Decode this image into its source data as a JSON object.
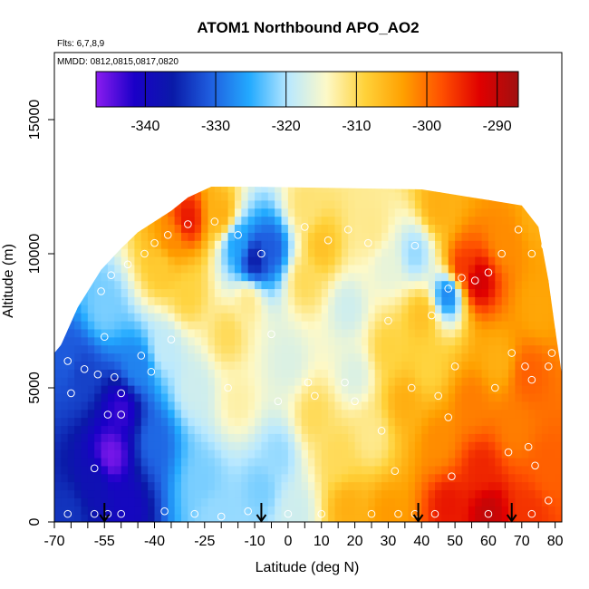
{
  "chart_data": {
    "type": "heatmap",
    "title": "ATOM1 Northbound APO_AO2",
    "annotation_flights": "Flts: 6,7,8,9",
    "annotation_dates": "MMDD: 0812,0815,0817,0820",
    "xlabel": "Latitude (deg N)",
    "ylabel": "Altitude (m)",
    "xlim": [
      -70,
      82
    ],
    "ylim": [
      0,
      17500
    ],
    "x_ticks": [
      -70,
      -65,
      -60,
      -55,
      -50,
      -45,
      -40,
      -35,
      -30,
      -25,
      -20,
      -15,
      -10,
      -5,
      0,
      5,
      10,
      15,
      20,
      25,
      30,
      35,
      40,
      45,
      50,
      55,
      60,
      65,
      70,
      75,
      80
    ],
    "x_tick_labels": [
      "-70",
      "-55",
      "-40",
      "-25",
      "-10",
      "0",
      "10",
      "20",
      "30",
      "40",
      "50",
      "60",
      "70",
      "80"
    ],
    "x_tick_label_values": [
      -70,
      -55,
      -40,
      -25,
      -10,
      0,
      10,
      20,
      30,
      40,
      50,
      60,
      70,
      80
    ],
    "y_ticks": [
      0,
      5000,
      10000,
      15000
    ],
    "y_tick_labels": [
      "0",
      "5000",
      "10000",
      "15000"
    ],
    "colorbar": {
      "range": [
        -347,
        -287
      ],
      "ticks": [
        -340,
        -330,
        -320,
        -310,
        -300,
        -290
      ],
      "tick_labels": [
        "-340",
        "-330",
        "-320",
        "-310",
        "-300",
        "-290"
      ],
      "colors": [
        "#8b1cf0",
        "#1a00c8",
        "#0a1aa8",
        "#1f5fe0",
        "#23aaff",
        "#b8e8ff",
        "#fdf9c8",
        "#ffd23a",
        "#ffa000",
        "#ff5000",
        "#e00000",
        "#a01010"
      ]
    },
    "profile_markers_latitude": [
      -55,
      -8,
      39,
      67
    ],
    "field_control_points": [
      {
        "lat": -66,
        "alt": 300,
        "value": -334
      },
      {
        "lat": -66,
        "alt": 6000,
        "value": -331
      },
      {
        "lat": -62,
        "alt": 5500,
        "value": -333
      },
      {
        "lat": -58,
        "alt": 1500,
        "value": -338
      },
      {
        "lat": -53,
        "alt": 2500,
        "value": -346
      },
      {
        "lat": -50,
        "alt": 4200,
        "value": -343
      },
      {
        "lat": -48,
        "alt": 500,
        "value": -340
      },
      {
        "lat": -55,
        "alt": 8000,
        "value": -322
      },
      {
        "lat": -45,
        "alt": 5800,
        "value": -328
      },
      {
        "lat": -40,
        "alt": 3000,
        "value": -330
      },
      {
        "lat": -37,
        "alt": 6500,
        "value": -319
      },
      {
        "lat": -38,
        "alt": 9500,
        "value": -308
      },
      {
        "lat": -35,
        "alt": 10500,
        "value": -302
      },
      {
        "lat": -30,
        "alt": 11300,
        "value": -294
      },
      {
        "lat": -30,
        "alt": 8500,
        "value": -309
      },
      {
        "lat": -28,
        "alt": 5000,
        "value": -318
      },
      {
        "lat": -26,
        "alt": 1500,
        "value": -322
      },
      {
        "lat": -22,
        "alt": 300,
        "value": -321
      },
      {
        "lat": -20,
        "alt": 11500,
        "value": -305
      },
      {
        "lat": -15,
        "alt": 10400,
        "value": -326
      },
      {
        "lat": -10,
        "alt": 9800,
        "value": -336
      },
      {
        "lat": -5,
        "alt": 10200,
        "value": -331
      },
      {
        "lat": -12,
        "alt": 8200,
        "value": -312
      },
      {
        "lat": -15,
        "alt": 4500,
        "value": -313
      },
      {
        "lat": -18,
        "alt": 7000,
        "value": -310
      },
      {
        "lat": -8,
        "alt": 1200,
        "value": -322
      },
      {
        "lat": -3,
        "alt": 2500,
        "value": -321
      },
      {
        "lat": 0,
        "alt": 6000,
        "value": -317
      },
      {
        "lat": 2,
        "alt": 400,
        "value": -318
      },
      {
        "lat": 5,
        "alt": 11800,
        "value": -311
      },
      {
        "lat": 5,
        "alt": 9000,
        "value": -310
      },
      {
        "lat": 8,
        "alt": 4000,
        "value": -310
      },
      {
        "lat": 10,
        "alt": 10300,
        "value": -307
      },
      {
        "lat": 15,
        "alt": 2500,
        "value": -310
      },
      {
        "lat": 18,
        "alt": 8000,
        "value": -318
      },
      {
        "lat": 18,
        "alt": 500,
        "value": -305
      },
      {
        "lat": 20,
        "alt": 5500,
        "value": -317
      },
      {
        "lat": 25,
        "alt": 11000,
        "value": -312
      },
      {
        "lat": 25,
        "alt": 3200,
        "value": -312
      },
      {
        "lat": 30,
        "alt": 9500,
        "value": -316
      },
      {
        "lat": 30,
        "alt": 6500,
        "value": -309
      },
      {
        "lat": 30,
        "alt": 300,
        "value": -303
      },
      {
        "lat": 35,
        "alt": 4500,
        "value": -305
      },
      {
        "lat": 38,
        "alt": 10000,
        "value": -321
      },
      {
        "lat": 40,
        "alt": 7700,
        "value": -307
      },
      {
        "lat": 42,
        "alt": 5800,
        "value": -309
      },
      {
        "lat": 45,
        "alt": 3000,
        "value": -302
      },
      {
        "lat": 45,
        "alt": 11800,
        "value": -305
      },
      {
        "lat": 48,
        "alt": 8500,
        "value": -328
      },
      {
        "lat": 48,
        "alt": 600,
        "value": -294
      },
      {
        "lat": 52,
        "alt": 9500,
        "value": -296
      },
      {
        "lat": 55,
        "alt": 4500,
        "value": -301
      },
      {
        "lat": 57,
        "alt": 9000,
        "value": -291
      },
      {
        "lat": 58,
        "alt": 2000,
        "value": -295
      },
      {
        "lat": 60,
        "alt": 300,
        "value": -290
      },
      {
        "lat": 63,
        "alt": 6000,
        "value": -305
      },
      {
        "lat": 65,
        "alt": 10500,
        "value": -302
      },
      {
        "lat": 68,
        "alt": 3500,
        "value": -301
      },
      {
        "lat": 72,
        "alt": 300,
        "value": -296
      },
      {
        "lat": 72,
        "alt": 5500,
        "value": -299
      },
      {
        "lat": 75,
        "alt": 8000,
        "value": -304
      },
      {
        "lat": 75,
        "alt": 11500,
        "value": -305
      },
      {
        "lat": 78,
        "alt": 2000,
        "value": -299
      }
    ],
    "coverage": {
      "top_left": [
        [
          -70,
          6300
        ],
        [
          -68,
          6600
        ],
        [
          -63,
          8000
        ],
        [
          -60,
          8600
        ],
        [
          -56,
          9400
        ],
        [
          -50,
          10200
        ],
        [
          -45,
          10800
        ],
        [
          -40,
          11200
        ],
        [
          -35,
          11600
        ],
        [
          -30,
          12100
        ],
        [
          -23,
          12500
        ],
        [
          -15,
          12500
        ],
        [
          -15,
          12500
        ]
      ],
      "top_right": [
        [
          -12,
          12500
        ],
        [
          40,
          12400
        ],
        [
          50,
          12200
        ],
        [
          60,
          12000
        ],
        [
          70,
          11800
        ],
        [
          75,
          11000
        ],
        [
          78,
          9000
        ],
        [
          80,
          7200
        ],
        [
          82,
          5500
        ],
        [
          82,
          0
        ]
      ]
    },
    "samples": [
      {
        "lat": -66,
        "alt": 300
      },
      {
        "lat": -58,
        "alt": 300
      },
      {
        "lat": -54,
        "alt": 300
      },
      {
        "lat": -50,
        "alt": 300
      },
      {
        "lat": -37,
        "alt": 400
      },
      {
        "lat": -28,
        "alt": 300
      },
      {
        "lat": -20,
        "alt": 200
      },
      {
        "lat": -12,
        "alt": 400
      },
      {
        "lat": 0,
        "alt": 300
      },
      {
        "lat": 10,
        "alt": 300
      },
      {
        "lat": 25,
        "alt": 300
      },
      {
        "lat": 33,
        "alt": 300
      },
      {
        "lat": 38,
        "alt": 300
      },
      {
        "lat": 44,
        "alt": 300
      },
      {
        "lat": 60,
        "alt": 300
      },
      {
        "lat": 73,
        "alt": 300
      },
      {
        "lat": -66,
        "alt": 6000
      },
      {
        "lat": -61,
        "alt": 5700
      },
      {
        "lat": -57,
        "alt": 5500
      },
      {
        "lat": -52,
        "alt": 5400
      },
      {
        "lat": -55,
        "alt": 6900
      },
      {
        "lat": -50,
        "alt": 4800
      },
      {
        "lat": -54,
        "alt": 4000
      },
      {
        "lat": -50,
        "alt": 4000
      },
      {
        "lat": -58,
        "alt": 2000
      },
      {
        "lat": -65,
        "alt": 4800
      },
      {
        "lat": -44,
        "alt": 6200
      },
      {
        "lat": -41,
        "alt": 5600
      },
      {
        "lat": -56,
        "alt": 8600
      },
      {
        "lat": -53,
        "alt": 9200
      },
      {
        "lat": -48,
        "alt": 9600
      },
      {
        "lat": -43,
        "alt": 10000
      },
      {
        "lat": -40,
        "alt": 10400
      },
      {
        "lat": -36,
        "alt": 10700
      },
      {
        "lat": -30,
        "alt": 11100
      },
      {
        "lat": -22,
        "alt": 11200
      },
      {
        "lat": -15,
        "alt": 10700
      },
      {
        "lat": -8,
        "alt": 10000
      },
      {
        "lat": 5,
        "alt": 11000
      },
      {
        "lat": 12,
        "alt": 10500
      },
      {
        "lat": 18,
        "alt": 10900
      },
      {
        "lat": 24,
        "alt": 10400
      },
      {
        "lat": 38,
        "alt": 10300
      },
      {
        "lat": 48,
        "alt": 8700
      },
      {
        "lat": 52,
        "alt": 9100
      },
      {
        "lat": 56,
        "alt": 9000
      },
      {
        "lat": 60,
        "alt": 9300
      },
      {
        "lat": 64,
        "alt": 10000
      },
      {
        "lat": 69,
        "alt": 10900
      },
      {
        "lat": 73,
        "alt": 10000
      },
      {
        "lat": 77,
        "alt": 10300
      },
      {
        "lat": 43,
        "alt": 7700
      },
      {
        "lat": -35,
        "alt": 6800
      },
      {
        "lat": -5,
        "alt": 7000
      },
      {
        "lat": 6,
        "alt": 5200
      },
      {
        "lat": -18,
        "alt": 5000
      },
      {
        "lat": -3,
        "alt": 4500
      },
      {
        "lat": 8,
        "alt": 4700
      },
      {
        "lat": 17,
        "alt": 5200
      },
      {
        "lat": 20,
        "alt": 4500
      },
      {
        "lat": 37,
        "alt": 5000
      },
      {
        "lat": 45,
        "alt": 4700
      },
      {
        "lat": 48,
        "alt": 3900
      },
      {
        "lat": 50,
        "alt": 5800
      },
      {
        "lat": 62,
        "alt": 5000
      },
      {
        "lat": 67,
        "alt": 6300
      },
      {
        "lat": 71,
        "alt": 5800
      },
      {
        "lat": 73,
        "alt": 5300
      },
      {
        "lat": 79,
        "alt": 6300
      },
      {
        "lat": 78,
        "alt": 5800
      },
      {
        "lat": 72,
        "alt": 2800
      },
      {
        "lat": 66,
        "alt": 2600
      },
      {
        "lat": 74,
        "alt": 2100
      },
      {
        "lat": 49,
        "alt": 1700
      },
      {
        "lat": 32,
        "alt": 1900
      },
      {
        "lat": 28,
        "alt": 3400
      },
      {
        "lat": 30,
        "alt": 7500
      },
      {
        "lat": 78,
        "alt": 800
      }
    ]
  }
}
